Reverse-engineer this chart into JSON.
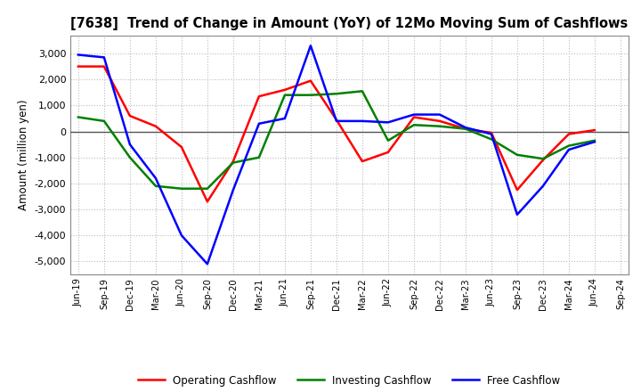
{
  "title": "[7638]  Trend of Change in Amount (YoY) of 12Mo Moving Sum of Cashflows",
  "ylabel": "Amount (million yen)",
  "x_labels": [
    "Jun-19",
    "Sep-19",
    "Dec-19",
    "Mar-20",
    "Jun-20",
    "Sep-20",
    "Dec-20",
    "Mar-21",
    "Jun-21",
    "Sep-21",
    "Dec-21",
    "Mar-22",
    "Jun-22",
    "Sep-22",
    "Dec-22",
    "Mar-23",
    "Jun-23",
    "Sep-23",
    "Dec-23",
    "Mar-24",
    "Jun-24",
    "Sep-24"
  ],
  "operating": [
    2500,
    2500,
    600,
    200,
    -600,
    -2700,
    -1150,
    1350,
    1600,
    1950,
    450,
    -1150,
    -800,
    550,
    400,
    100,
    -50,
    -2250,
    -1100,
    -100,
    50,
    null
  ],
  "investing": [
    550,
    400,
    -1000,
    -2100,
    -2200,
    -2200,
    -1200,
    -1000,
    1400,
    1400,
    1450,
    1550,
    -350,
    250,
    200,
    100,
    -300,
    -900,
    -1050,
    -550,
    -350,
    null
  ],
  "free": [
    2950,
    2850,
    -500,
    -1800,
    -4000,
    -5100,
    -2250,
    300,
    500,
    3300,
    400,
    400,
    350,
    650,
    650,
    150,
    -100,
    -3200,
    -2100,
    -700,
    -400,
    null
  ],
  "operating_color": "#ff0000",
  "investing_color": "#008000",
  "free_color": "#0000ff",
  "ylim": [
    -5500,
    3700
  ],
  "yticks": [
    -5000,
    -4000,
    -3000,
    -2000,
    -1000,
    0,
    1000,
    2000,
    3000
  ],
  "bg_color": "#ffffff",
  "plot_bg_color": "#ffffff",
  "grid_color": "#bbbbbb"
}
